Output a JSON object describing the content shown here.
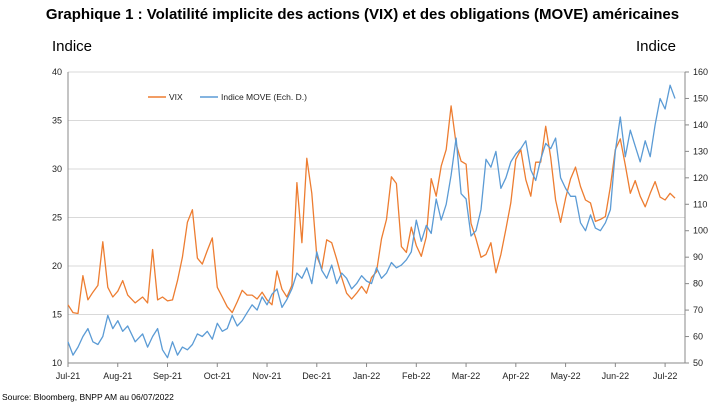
{
  "chart_data": {
    "type": "line",
    "title": "Graphique 1 :  Volatilité implicite des actions (VIX) et des obligations (MOVE) américaines",
    "ylabel_left": "Indice",
    "ylabel_right": "Indice",
    "source": "Source: Bloomberg, BNPP AM au 06/07/2022",
    "ylim_left": [
      10,
      40
    ],
    "ylim_right": [
      50,
      160
    ],
    "yticks_left": [
      "10",
      "15",
      "20",
      "25",
      "30",
      "35",
      "40"
    ],
    "yticks_right": [
      "50",
      "60",
      "70",
      "80",
      "90",
      "100",
      "110",
      "120",
      "130",
      "140",
      "150",
      "160"
    ],
    "xticks": [
      "Jul-21",
      "Aug-21",
      "Sep-21",
      "Oct-21",
      "Nov-21",
      "Dec-21",
      "Jan-22",
      "Feb-22",
      "Mar-22",
      "Apr-22",
      "May-22",
      "Jun-22",
      "Jul-22"
    ],
    "grid": true,
    "legend_position": "top-left",
    "x_axis_unit": "months since Jul-21",
    "series": [
      {
        "name": "VIX",
        "axis": "left",
        "color": "#ED7D31",
        "x": [
          0,
          0.1,
          0.2,
          0.3,
          0.4,
          0.5,
          0.6,
          0.7,
          0.8,
          0.9,
          1.0,
          1.1,
          1.2,
          1.35,
          1.5,
          1.6,
          1.7,
          1.8,
          1.9,
          2.0,
          2.1,
          2.2,
          2.3,
          2.4,
          2.5,
          2.6,
          2.7,
          2.8,
          2.9,
          3.0,
          3.1,
          3.2,
          3.3,
          3.4,
          3.5,
          3.6,
          3.7,
          3.8,
          3.9,
          4.0,
          4.1,
          4.2,
          4.3,
          4.4,
          4.5,
          4.6,
          4.7,
          4.8,
          4.9,
          5.0,
          5.1,
          5.2,
          5.3,
          5.4,
          5.5,
          5.6,
          5.7,
          5.8,
          5.9,
          6.0,
          6.1,
          6.2,
          6.3,
          6.4,
          6.5,
          6.6,
          6.7,
          6.8,
          6.9,
          7.0,
          7.1,
          7.2,
          7.3,
          7.4,
          7.5,
          7.6,
          7.7,
          7.8,
          7.9,
          8.0,
          8.1,
          8.2,
          8.3,
          8.4,
          8.5,
          8.6,
          8.7,
          8.8,
          8.9,
          9.0,
          9.1,
          9.2,
          9.3,
          9.4,
          9.5,
          9.6,
          9.7,
          9.8,
          9.9,
          10.0,
          10.1,
          10.2,
          10.3,
          10.4,
          10.5,
          10.6,
          10.7,
          10.8,
          10.9,
          11.0,
          11.1,
          11.2,
          11.3,
          11.4,
          11.5,
          11.6,
          11.7,
          11.8,
          11.9,
          12.0,
          12.1,
          12.2
        ],
        "values": [
          16.0,
          15.2,
          15.1,
          19.0,
          16.5,
          17.3,
          18.0,
          22.5,
          17.8,
          16.8,
          17.4,
          18.5,
          17.0,
          16.2,
          16.8,
          16.2,
          21.7,
          16.5,
          16.8,
          16.4,
          16.5,
          18.5,
          20.9,
          24.5,
          25.8,
          20.8,
          20.2,
          21.6,
          22.9,
          17.8,
          16.8,
          15.8,
          15.2,
          16.3,
          17.5,
          17.0,
          17.0,
          16.6,
          17.3,
          16.5,
          16.0,
          19.5,
          17.6,
          16.8,
          18.0,
          28.6,
          22.4,
          31.1,
          27.5,
          21.0,
          19.7,
          22.7,
          22.4,
          20.7,
          18.8,
          17.2,
          16.6,
          17.2,
          17.9,
          17.2,
          18.8,
          19.4,
          22.8,
          24.8,
          29.2,
          28.5,
          22.0,
          21.4,
          24.0,
          22.1,
          21.0,
          23.0,
          29.0,
          27.2,
          30.3,
          32.0,
          36.5,
          32.6,
          30.8,
          30.5,
          24.4,
          22.8,
          20.9,
          21.2,
          22.4,
          19.3,
          21.2,
          23.8,
          26.5,
          31.0,
          32.0,
          28.9,
          27.2,
          30.7,
          30.7,
          34.4,
          31.2,
          26.8,
          24.5,
          27.0,
          29.0,
          30.2,
          28.2,
          26.8,
          26.5,
          24.6,
          24.8,
          25.1,
          28.2,
          32.0,
          33.1,
          30.4,
          27.5,
          28.8,
          27.2,
          26.1,
          27.5,
          28.7,
          27.1,
          26.8,
          27.5,
          27.0
        ]
      },
      {
        "name": "Indice MOVE (Ech. D.)",
        "axis": "right",
        "color": "#5B9BD5",
        "x": [
          0,
          0.1,
          0.2,
          0.3,
          0.4,
          0.5,
          0.6,
          0.7,
          0.8,
          0.9,
          1.0,
          1.1,
          1.2,
          1.35,
          1.5,
          1.6,
          1.7,
          1.8,
          1.9,
          2.0,
          2.1,
          2.2,
          2.3,
          2.4,
          2.5,
          2.6,
          2.7,
          2.8,
          2.9,
          3.0,
          3.1,
          3.2,
          3.3,
          3.4,
          3.5,
          3.6,
          3.7,
          3.8,
          3.9,
          4.0,
          4.1,
          4.2,
          4.3,
          4.4,
          4.5,
          4.6,
          4.7,
          4.8,
          4.9,
          5.0,
          5.1,
          5.2,
          5.3,
          5.4,
          5.5,
          5.6,
          5.7,
          5.8,
          5.9,
          6.0,
          6.1,
          6.2,
          6.3,
          6.4,
          6.5,
          6.6,
          6.7,
          6.8,
          6.9,
          7.0,
          7.1,
          7.2,
          7.3,
          7.4,
          7.5,
          7.6,
          7.7,
          7.8,
          7.9,
          8.0,
          8.1,
          8.2,
          8.3,
          8.4,
          8.5,
          8.6,
          8.7,
          8.8,
          8.9,
          9.0,
          9.1,
          9.2,
          9.3,
          9.4,
          9.5,
          9.6,
          9.7,
          9.8,
          9.9,
          10.0,
          10.1,
          10.2,
          10.3,
          10.4,
          10.5,
          10.6,
          10.7,
          10.8,
          10.9,
          11.0,
          11.1,
          11.2,
          11.3,
          11.4,
          11.5,
          11.6,
          11.7,
          11.8,
          11.9,
          12.0,
          12.1,
          12.2
        ],
        "values": [
          58,
          53,
          56,
          60,
          63,
          58,
          57,
          60,
          68,
          63,
          66,
          62,
          64,
          58,
          61,
          56,
          60,
          63,
          55,
          52,
          58,
          53,
          56,
          55,
          57,
          61,
          60,
          62,
          59,
          65,
          62,
          63,
          68,
          64,
          66,
          69,
          72,
          70,
          75,
          72,
          76,
          78,
          71,
          74,
          78,
          84,
          82,
          86,
          80,
          92,
          85,
          82,
          87,
          80,
          84,
          82,
          78,
          80,
          83,
          81,
          80,
          86,
          82,
          84,
          88,
          86,
          87,
          89,
          92,
          104,
          96,
          102,
          99,
          112,
          104,
          110,
          121,
          135,
          114,
          112,
          98,
          100,
          108,
          127,
          124,
          130,
          116,
          120,
          126,
          129,
          131,
          134,
          123,
          119,
          127,
          133,
          131,
          135,
          120,
          116,
          113,
          113,
          103,
          100,
          106,
          101,
          100,
          103,
          108,
          130,
          143,
          128,
          138,
          132,
          126,
          134,
          128,
          140,
          150,
          146,
          155,
          150
        ]
      }
    ]
  }
}
